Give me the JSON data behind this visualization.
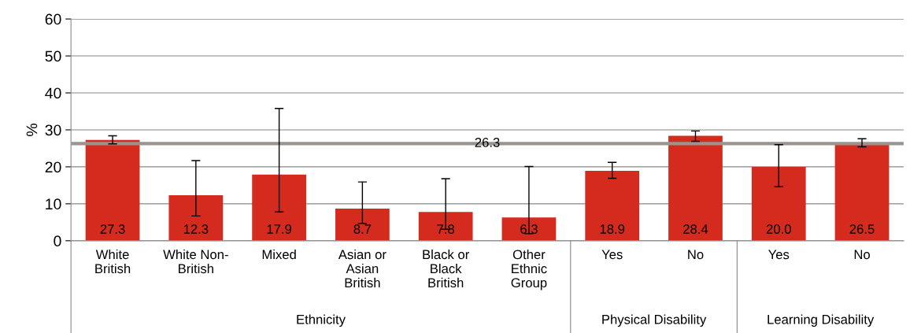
{
  "chart_data": {
    "type": "bar",
    "ylabel": "%",
    "categories": [
      "White\nBritish",
      "White Non-\nBritish",
      "Mixed",
      "Asian or\nAsian\nBritish",
      "Black or\nBlack\nBritish",
      "Other\nEthnic\nGroup",
      "Yes",
      "No",
      "Yes",
      "No"
    ],
    "values": [
      27.3,
      12.3,
      17.9,
      8.7,
      7.8,
      6.3,
      18.9,
      28.4,
      20.0,
      26.5
    ],
    "errors": [
      [
        26.2,
        28.4
      ],
      [
        6.7,
        21.7
      ],
      [
        7.8,
        35.8
      ],
      [
        4.7,
        15.9
      ],
      [
        3.1,
        16.8
      ],
      [
        1.9,
        20.1
      ],
      [
        16.9,
        21.2
      ],
      [
        26.9,
        29.7
      ],
      [
        14.6,
        26.0
      ],
      [
        25.4,
        27.6
      ]
    ],
    "color": "#d52b1e",
    "ylim": [
      0,
      60
    ],
    "yticks": [
      0,
      10,
      20,
      30,
      40,
      50,
      60
    ],
    "grid": "y",
    "value_labels": [
      "27.3",
      "12.3",
      "17.9",
      "8.7",
      "7.8",
      "6.3",
      "18.9",
      "28.4",
      "20.0",
      "26.5"
    ],
    "ref_lines": [
      {
        "axis": "y",
        "value": 26.3,
        "label": "26.3",
        "color": "#999490"
      }
    ],
    "annotations": [
      "Ethnicity",
      "Physical Disability",
      "Learning Disability"
    ]
  }
}
